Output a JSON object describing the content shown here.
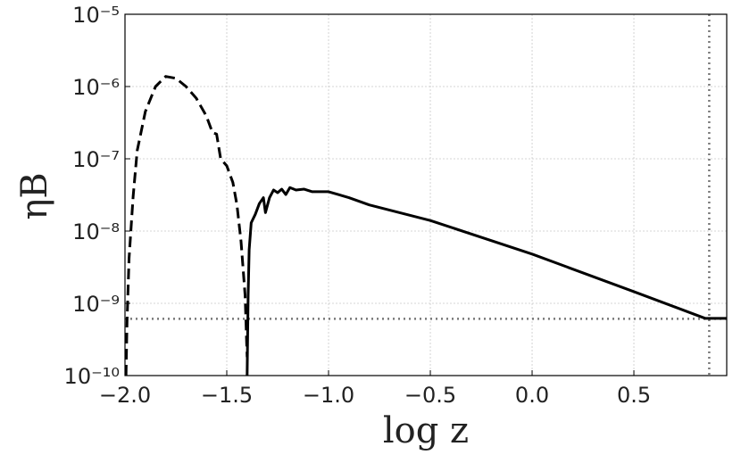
{
  "chart_data": {
    "type": "line",
    "x_label": "log z",
    "y_label": "ηB",
    "yscale": "log",
    "grid": true,
    "xlim": [
      -2.0,
      0.956
    ],
    "ylim": [
      1e-10,
      1e-05
    ],
    "xticks": [
      {
        "value": -2.0,
        "label": "−2.0"
      },
      {
        "value": -1.5,
        "label": "−1.5"
      },
      {
        "value": -1.0,
        "label": "−1.0"
      },
      {
        "value": -0.5,
        "label": "−0.5"
      },
      {
        "value": 0.0,
        "label": "0.0"
      },
      0.5
    ],
    "yticks": [
      {
        "value": 1e-10,
        "label": "10⁻¹⁰"
      },
      {
        "value": 1e-09,
        "label": "10⁻⁹"
      },
      {
        "value": 1e-08,
        "label": "10⁻⁸"
      },
      {
        "value": 1e-07,
        "label": "10⁻⁷"
      },
      {
        "value": 1e-06,
        "label": "10⁻⁶"
      },
      {
        "value": 1e-05,
        "label": "10⁻⁵"
      }
    ],
    "series": [
      {
        "color": "#000000",
        "dashed": true,
        "x": [
          -1.995,
          -1.99,
          -1.98,
          -1.96,
          -1.94,
          -1.9,
          -1.85,
          -1.8,
          -1.75,
          -1.7,
          -1.65,
          -1.6,
          -1.57,
          -1.55,
          -1.53,
          -1.5,
          -1.47,
          -1.45,
          -1.43,
          -1.41,
          -1.4
        ],
        "values": [
          1e-10,
          5.6e-10,
          4.2e-09,
          3e-08,
          1.3e-07,
          4.5e-07,
          1e-06,
          1.38e-06,
          1.3e-06,
          1e-06,
          6.9e-07,
          3.9e-07,
          2.3e-07,
          2.2e-07,
          1e-07,
          8e-08,
          4.7e-08,
          2.3e-08,
          7.2e-09,
          1.3e-09,
          1.8e-10
        ]
      },
      {
        "color": "#000000",
        "dashed": false,
        "x": [
          -1.4,
          -1.395,
          -1.39,
          -1.38,
          -1.36,
          -1.34,
          -1.32,
          -1.31,
          -1.29,
          -1.27,
          -1.25,
          -1.23,
          -1.21,
          -1.19,
          -1.16,
          -1.12,
          -1.08,
          -1.0,
          -0.9,
          -0.8,
          -0.5,
          0.0,
          0.5,
          0.8,
          0.85,
          0.956
        ],
        "values": [
          1e-10,
          1.3e-09,
          5.5e-09,
          1.3e-08,
          1.7e-08,
          2.4e-08,
          2.9e-08,
          1.8e-08,
          2.9e-08,
          3.7e-08,
          3.4e-08,
          3.8e-08,
          3.2e-08,
          4e-08,
          3.7e-08,
          3.8e-08,
          3.5e-08,
          3.5e-08,
          2.9e-08,
          2.3e-08,
          1.4e-08,
          4.8e-09,
          1.45e-09,
          7e-10,
          6.2e-10,
          6.2e-10
        ]
      }
    ],
    "hline": 6.1e-10,
    "vline": 0.87,
    "ref_color": "#777777"
  }
}
